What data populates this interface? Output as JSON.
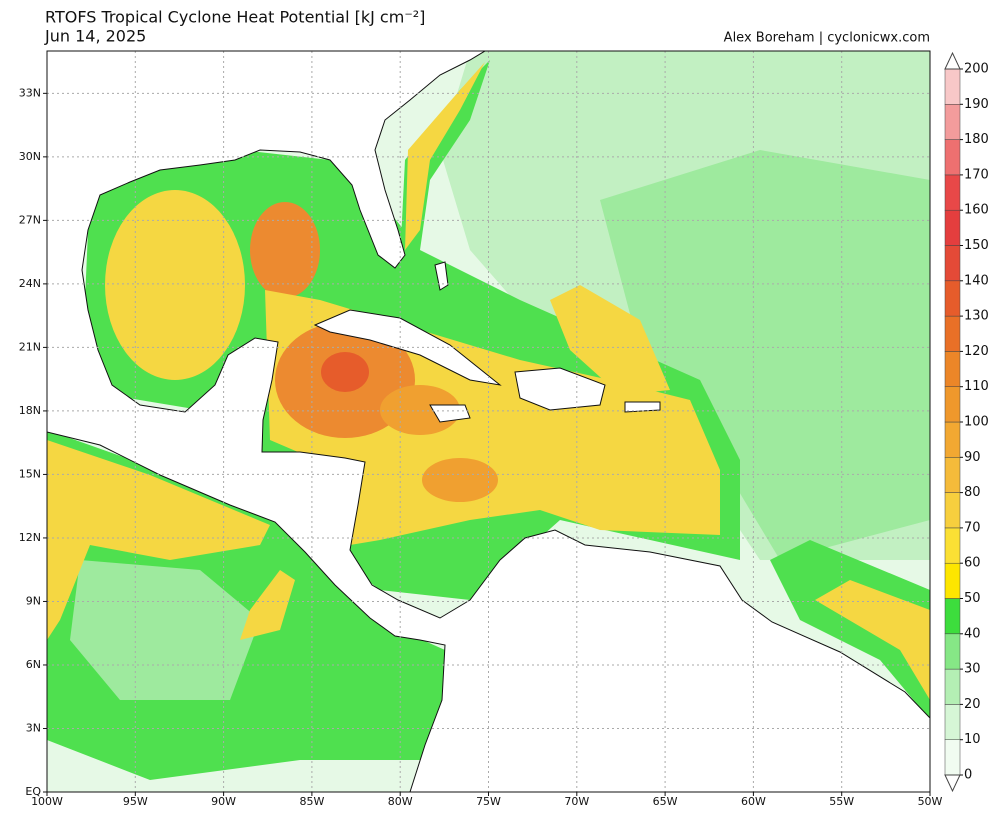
{
  "title": "RTOFS Tropical Cyclone Heat Potential [kJ cm⁻²]",
  "date": "Jun 14, 2025",
  "credit": "Alex Boreham | cyclonicwx.com",
  "map": {
    "lonlim": [
      -100,
      -50
    ],
    "latlim": [
      0,
      35
    ],
    "grid": true,
    "lon_ticks": [
      {
        "value": -100,
        "label": "100W"
      },
      {
        "value": -95,
        "label": "95W"
      },
      {
        "value": -90,
        "label": "90W"
      },
      {
        "value": -85,
        "label": "85W"
      },
      {
        "value": -80,
        "label": "80W"
      },
      {
        "value": -75,
        "label": "75W"
      },
      {
        "value": -70,
        "label": "70W"
      },
      {
        "value": -65,
        "label": "65W"
      },
      {
        "value": -60,
        "label": "60W"
      },
      {
        "value": -55,
        "label": "55W"
      },
      {
        "value": -50,
        "label": "50W"
      }
    ],
    "lat_ticks": [
      {
        "value": 0,
        "label": "EQ"
      },
      {
        "value": 3,
        "label": "3N"
      },
      {
        "value": 6,
        "label": "6N"
      },
      {
        "value": 9,
        "label": "9N"
      },
      {
        "value": 12,
        "label": "12N"
      },
      {
        "value": 15,
        "label": "15N"
      },
      {
        "value": 18,
        "label": "18N"
      },
      {
        "value": 21,
        "label": "21N"
      },
      {
        "value": 24,
        "label": "24N"
      },
      {
        "value": 27,
        "label": "27N"
      },
      {
        "value": 30,
        "label": "30N"
      },
      {
        "value": 33,
        "label": "33N"
      }
    ]
  },
  "colorbar": {
    "ticks": [
      0,
      10,
      20,
      30,
      40,
      50,
      60,
      70,
      80,
      90,
      100,
      110,
      120,
      130,
      140,
      150,
      160,
      170,
      180,
      190,
      200
    ],
    "colors": [
      "#f1fcf1",
      "#d6f6d6",
      "#b4efb4",
      "#86e786",
      "#3ddd3d",
      "#fde600",
      "#fbe034",
      "#f7cf3e",
      "#f5bb3a",
      "#f2a832",
      "#ef982c",
      "#ec8628",
      "#e97027",
      "#e65c2b",
      "#e44a37",
      "#e43e3e",
      "#e84848",
      "#ee7070",
      "#f39c9c",
      "#f8c8c8"
    ]
  }
}
